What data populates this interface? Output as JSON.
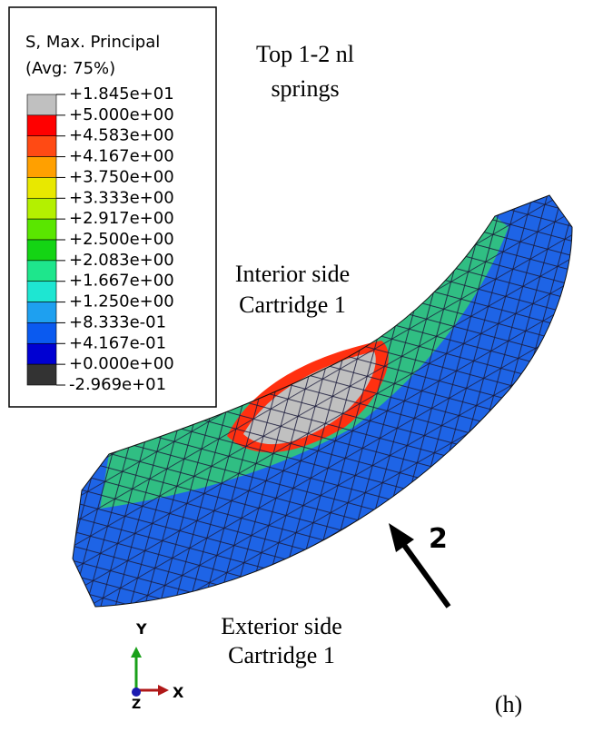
{
  "legend": {
    "title": "S, Max. Principal",
    "subtitle": "(Avg: 75%)",
    "labels": [
      "+1.845e+01",
      "+5.000e+00",
      "+4.583e+00",
      "+4.167e+00",
      "+3.750e+00",
      "+3.333e+00",
      "+2.917e+00",
      "+2.500e+00",
      "+2.083e+00",
      "+1.667e+00",
      "+1.250e+00",
      "+8.333e-01",
      "+4.167e-01",
      "+0.000e+00",
      "-2.969e+01"
    ],
    "colors": [
      "#c0c0c0",
      "#ff0000",
      "#ff4a14",
      "#ffa000",
      "#e8e800",
      "#b4f000",
      "#5ae600",
      "#14d414",
      "#1ee68c",
      "#1ee6d2",
      "#1ea0f0",
      "#0a5af0",
      "#0000d2",
      "#333333"
    ]
  },
  "annotations": {
    "top_line1": "Top 1-2 nl",
    "top_line2": "springs",
    "interior_line1": "Interior side",
    "interior_line2": "Cartridge 1",
    "exterior_line1": "Exterior side",
    "exterior_line2": "Cartridge 1",
    "arrow_label": "2"
  },
  "axes": {
    "y": "Y",
    "x": "X",
    "z": "Z"
  },
  "panel_label": "(h)"
}
